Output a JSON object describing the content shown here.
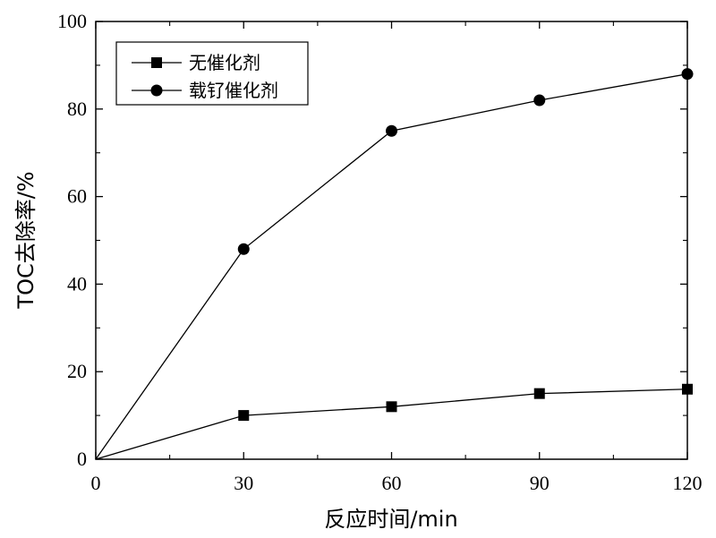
{
  "chart_data": {
    "type": "line",
    "xlabel": "反应时间/min",
    "ylabel": "TOC去除率/%",
    "x": [
      0,
      30,
      60,
      90,
      120
    ],
    "xlim": [
      0,
      120
    ],
    "ylim": [
      0,
      100
    ],
    "x_ticks": [
      "0",
      "30",
      "60",
      "90",
      "120"
    ],
    "y_ticks": [
      "0",
      "20",
      "40",
      "60",
      "80",
      "100"
    ],
    "grid": false,
    "legend_position": "top-left",
    "series": [
      {
        "name": "无催化剂",
        "marker": "square",
        "values": [
          0,
          10,
          12,
          15,
          16
        ]
      },
      {
        "name": "载钌催化剂",
        "marker": "circle",
        "values": [
          0,
          48,
          75,
          82,
          88
        ]
      }
    ]
  }
}
